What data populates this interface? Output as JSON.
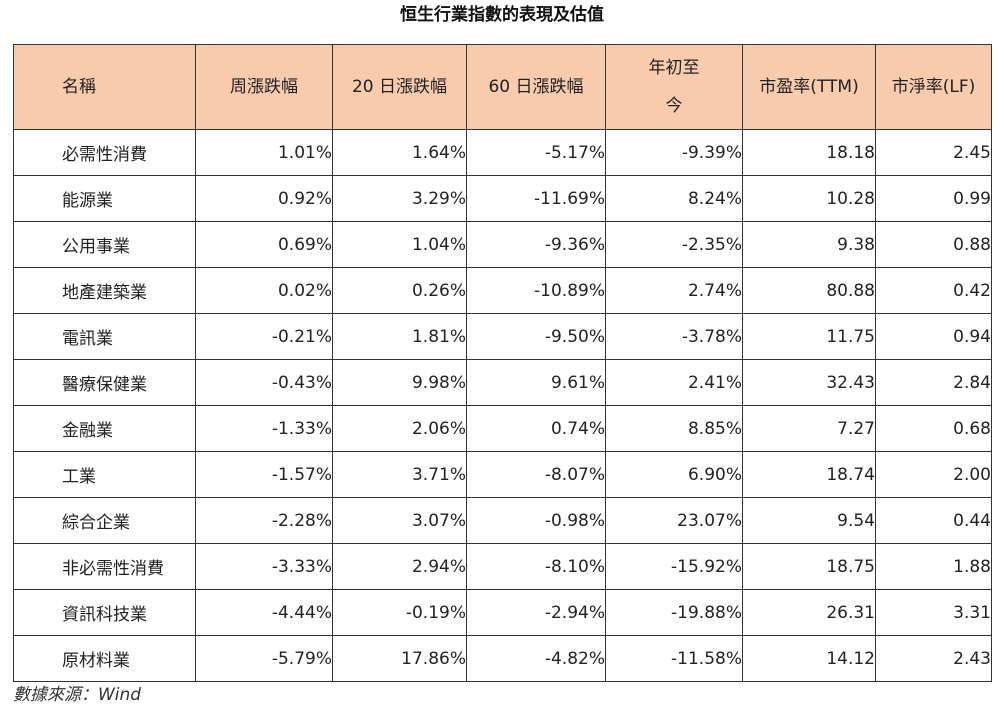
{
  "title": "恒生行業指數的表現及估值",
  "table": {
    "headers": [
      "名稱",
      "周漲跌幅",
      "20 日漲跌幅",
      "60 日漲跌幅",
      "年初至\n今",
      "市盈率(TTM)",
      "市淨率(LF)"
    ],
    "rows": [
      [
        "必需性消費",
        "1.01%",
        "1.64%",
        "-5.17%",
        "-9.39%",
        "18.18",
        "2.45"
      ],
      [
        "能源業",
        "0.92%",
        "3.29%",
        "-11.69%",
        "8.24%",
        "10.28",
        "0.99"
      ],
      [
        "公用事業",
        "0.69%",
        "1.04%",
        "-9.36%",
        "-2.35%",
        "9.38",
        "0.88"
      ],
      [
        "地產建築業",
        "0.02%",
        "0.26%",
        "-10.89%",
        "2.74%",
        "80.88",
        "0.42"
      ],
      [
        "電訊業",
        "-0.21%",
        "1.81%",
        "-9.50%",
        "-3.78%",
        "11.75",
        "0.94"
      ],
      [
        "醫療保健業",
        "-0.43%",
        "9.98%",
        "9.61%",
        "2.41%",
        "32.43",
        "2.84"
      ],
      [
        "金融業",
        "-1.33%",
        "2.06%",
        "0.74%",
        "8.85%",
        "7.27",
        "0.68"
      ],
      [
        "工業",
        "-1.57%",
        "3.71%",
        "-8.07%",
        "6.90%",
        "18.74",
        "2.00"
      ],
      [
        "綜合企業",
        "-2.28%",
        "3.07%",
        "-0.98%",
        "23.07%",
        "9.54",
        "0.44"
      ],
      [
        "非必需性消費",
        "-3.33%",
        "2.94%",
        "-8.10%",
        "-15.92%",
        "18.75",
        "1.88"
      ],
      [
        "資訊科技業",
        "-4.44%",
        "-0.19%",
        "-2.94%",
        "-19.88%",
        "26.31",
        "3.31"
      ],
      [
        "原材料業",
        "-5.79%",
        "17.86%",
        "-4.82%",
        "-11.58%",
        "14.12",
        "2.43"
      ]
    ]
  },
  "source": "數據來源：Wind"
}
